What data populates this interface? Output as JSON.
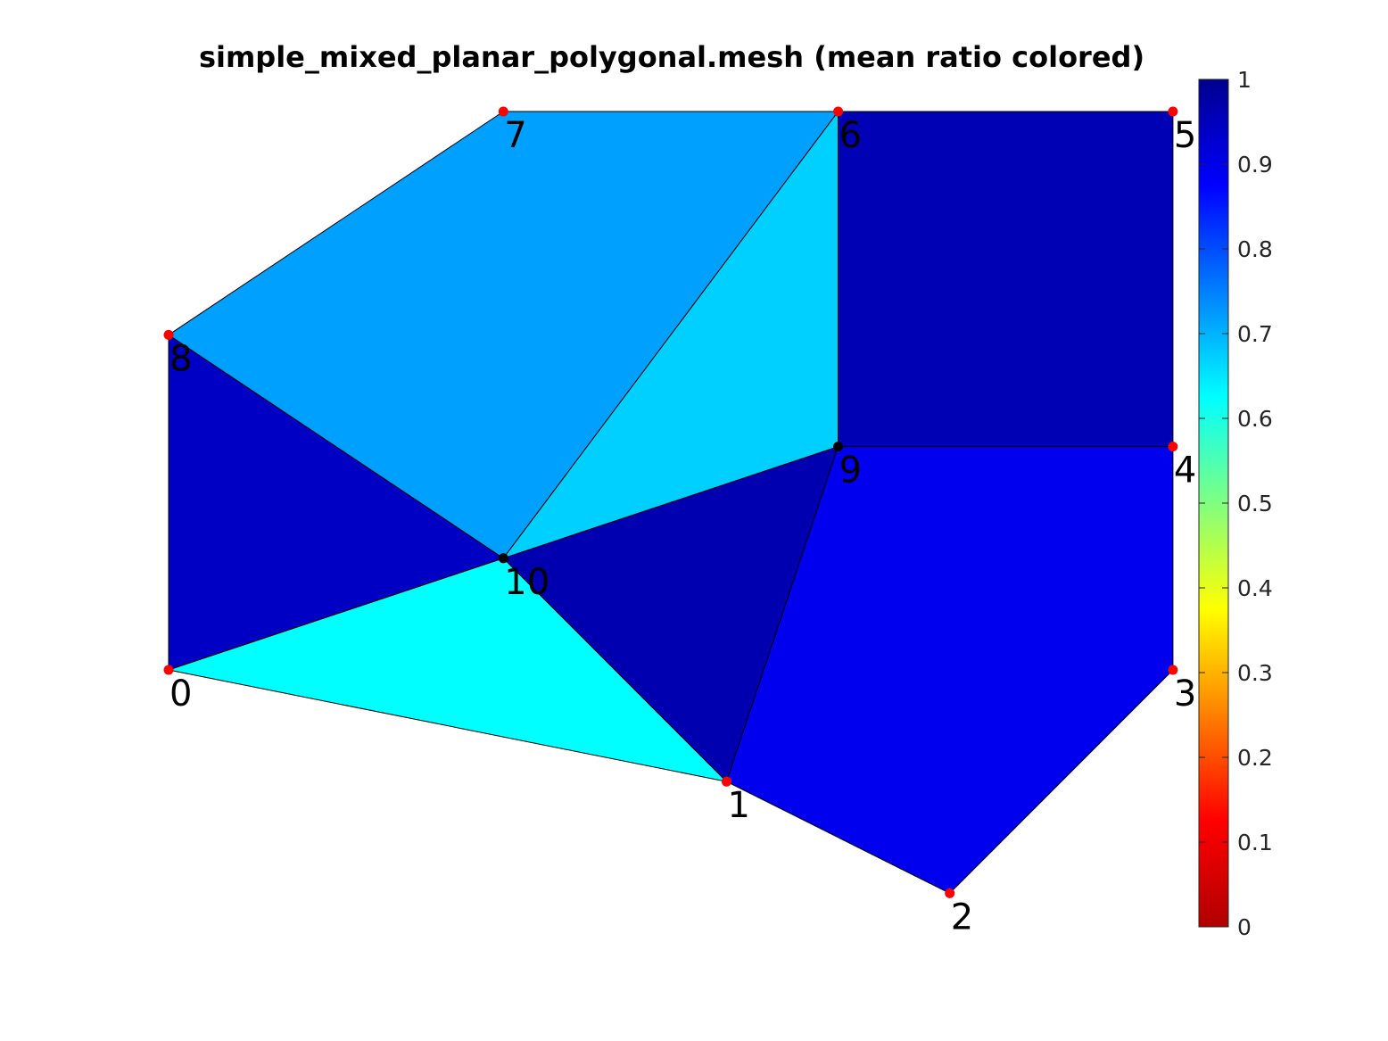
{
  "title": "simple_mixed_planar_polygonal.mesh (mean ratio colored)",
  "chart_data": {
    "type": "mesh",
    "title": "simple_mixed_planar_polygonal.mesh (mean ratio colored)",
    "xlim": [
      0,
      9
    ],
    "ylim": [
      -2,
      5
    ],
    "nodes": [
      {
        "id": 0,
        "label": "0",
        "x": 0,
        "y": 0,
        "boundary": true
      },
      {
        "id": 1,
        "label": "1",
        "x": 5,
        "y": -1,
        "boundary": true
      },
      {
        "id": 2,
        "label": "2",
        "x": 7,
        "y": -2,
        "boundary": true
      },
      {
        "id": 3,
        "label": "3",
        "x": 9,
        "y": 0,
        "boundary": true
      },
      {
        "id": 4,
        "label": "4",
        "x": 9,
        "y": 2,
        "boundary": true
      },
      {
        "id": 5,
        "label": "5",
        "x": 9,
        "y": 5,
        "boundary": true
      },
      {
        "id": 6,
        "label": "6",
        "x": 6,
        "y": 5,
        "boundary": true
      },
      {
        "id": 7,
        "label": "7",
        "x": 3,
        "y": 5,
        "boundary": true
      },
      {
        "id": 8,
        "label": "8",
        "x": 0,
        "y": 3,
        "boundary": true
      },
      {
        "id": 9,
        "label": "9",
        "x": 6,
        "y": 2,
        "boundary": false
      },
      {
        "id": 10,
        "label": "10",
        "x": 3,
        "y": 1,
        "boundary": false
      }
    ],
    "elements": [
      {
        "nodes": [
          0,
          1,
          10
        ],
        "quality": 0.67,
        "color": "#00ffff"
      },
      {
        "nodes": [
          10,
          1,
          9
        ],
        "quality": 0.97,
        "color": "#0000b0"
      },
      {
        "nodes": [
          0,
          10,
          8
        ],
        "quality": 0.96,
        "color": "#0000c4"
      },
      {
        "nodes": [
          8,
          10,
          6,
          7
        ],
        "quality": 0.77,
        "color": "#00a0ff"
      },
      {
        "nodes": [
          10,
          9,
          6
        ],
        "quality": 0.72,
        "color": "#00d0ff"
      },
      {
        "nodes": [
          9,
          4,
          5,
          6
        ],
        "quality": 1.0,
        "color": "#0000b4"
      },
      {
        "nodes": [
          1,
          2,
          3,
          4,
          9
        ],
        "quality": 0.92,
        "color": "#0000ee"
      }
    ],
    "colorbar": {
      "colormap": "jet",
      "range": [
        0,
        1
      ],
      "ticks": [
        "0",
        "0.1",
        "0.2",
        "0.3",
        "0.4",
        "0.5",
        "0.6",
        "0.7",
        "0.8",
        "0.9",
        "1"
      ],
      "stops": [
        "#b00000",
        "#ff0000",
        "#ff8000",
        "#ffff00",
        "#80ff80",
        "#00ffff",
        "#0080ff",
        "#0000ff",
        "#00008f"
      ]
    },
    "boundary_node_color": "#ff0000",
    "interior_node_color": "#000000"
  }
}
